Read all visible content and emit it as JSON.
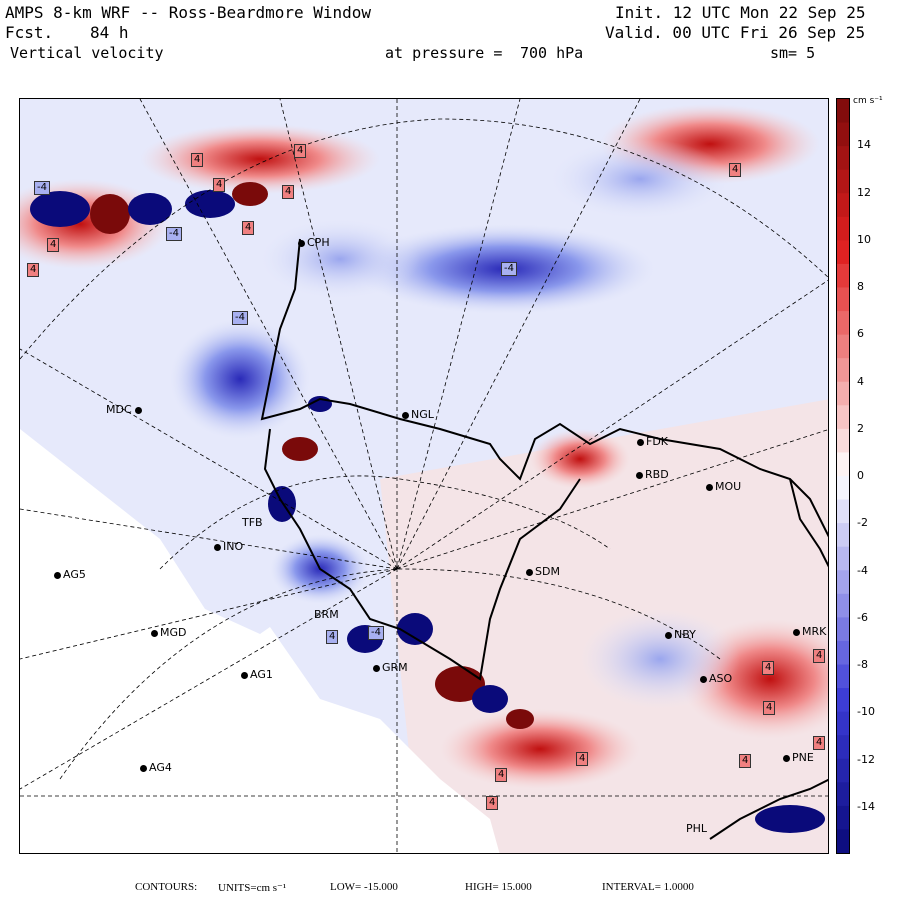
{
  "header": {
    "title": "AMPS 8-km WRF -- Ross-Beardmore Window",
    "fcst_label": "Fcst.",
    "fcst_value": "84 h",
    "variable": "Vertical velocity",
    "level_label": "at pressure =",
    "level_value": "700 hPa",
    "init": "Init. 12 UTC Mon 22 Sep 25",
    "valid": "Valid. 00 UTC Fri 26 Sep 25",
    "smoothing": "sm= 5"
  },
  "stations": [
    {
      "name": "CPH"
    },
    {
      "name": "MDC"
    },
    {
      "name": "NGL"
    },
    {
      "name": "FDK"
    },
    {
      "name": "RBD"
    },
    {
      "name": "MOU"
    },
    {
      "name": "TFB"
    },
    {
      "name": "INO"
    },
    {
      "name": "AG5"
    },
    {
      "name": "SDM"
    },
    {
      "name": "MGD"
    },
    {
      "name": "BRM"
    },
    {
      "name": "GRM"
    },
    {
      "name": "NBY"
    },
    {
      "name": "AG1"
    },
    {
      "name": "MRK"
    },
    {
      "name": "ASO"
    },
    {
      "name": "AG4"
    },
    {
      "name": "PNE"
    },
    {
      "name": "PHL"
    }
  ],
  "contour_labels": [
    "4",
    "4",
    "4",
    "-4",
    "4",
    "4",
    "-4",
    "-4",
    "4",
    "4",
    "4",
    "-4",
    "4",
    "-4",
    "4",
    "4",
    "4",
    "4",
    "4",
    "4",
    "4",
    "4"
  ],
  "colorbar": {
    "units_label": "cm s⁻¹",
    "ticks": [
      14,
      12,
      10,
      8,
      6,
      4,
      2,
      0,
      -2,
      -4,
      -6,
      -8,
      -10,
      -12,
      -14
    ],
    "min": -16,
    "max": 16,
    "colors": {
      "neg_max": "#0a0a7a",
      "neg": "#3b3bd6",
      "zero": "#ffffff",
      "pos": "#e02020",
      "pos_max": "#7a0a0a"
    }
  },
  "footer": {
    "contours_label": "CONTOURS:",
    "units_text": "UNITS=cm s⁻¹",
    "low_text": "LOW= -15.000",
    "high_text": "HIGH= 15.000",
    "interval_text": "INTERVAL= 1.0000"
  }
}
